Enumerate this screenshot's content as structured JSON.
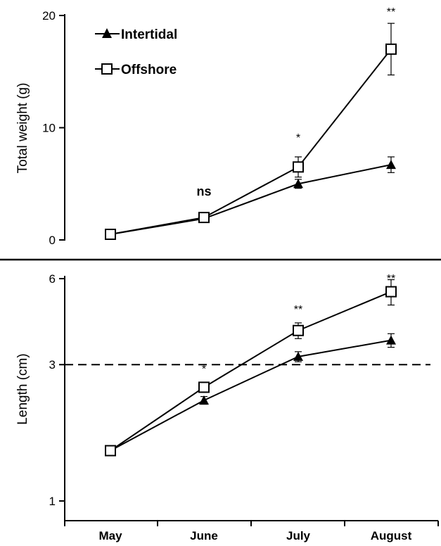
{
  "chart_data": [
    {
      "type": "line",
      "ylabel": "Total weight (g)",
      "ylim": [
        0,
        20
      ],
      "yticks": [
        "0",
        "10",
        "20"
      ],
      "categories": [
        "May",
        "June",
        "July",
        "August"
      ],
      "series": [
        {
          "name": "Intertidal",
          "marker": "filled-triangle",
          "values": [
            0.5,
            1.9,
            5.0,
            6.7
          ],
          "errors": [
            0.1,
            0.2,
            0.4,
            0.7
          ]
        },
        {
          "name": "Offshore",
          "marker": "open-square",
          "values": [
            0.5,
            2.0,
            6.5,
            17.0
          ],
          "errors": [
            0.1,
            0.2,
            0.9,
            2.3
          ]
        }
      ],
      "annotations": [
        {
          "category": "June",
          "text": "ns"
        },
        {
          "category": "July",
          "text": "*"
        },
        {
          "category": "August",
          "text": "**"
        }
      ]
    },
    {
      "type": "line",
      "ylabel": "Length (cm)",
      "yscale": "log",
      "ylim": [
        1,
        6
      ],
      "yticks": [
        "1",
        "3",
        "6"
      ],
      "reference_line": {
        "y": 3,
        "style": "dashed"
      },
      "categories": [
        "May",
        "June",
        "July",
        "August"
      ],
      "series": [
        {
          "name": "Intertidal",
          "marker": "filled-triangle",
          "values": [
            1.5,
            2.25,
            3.2,
            3.65
          ],
          "errors": [
            0.04,
            0.07,
            0.13,
            0.2
          ]
        },
        {
          "name": "Offshore",
          "marker": "open-square",
          "values": [
            1.5,
            2.5,
            3.95,
            5.4
          ],
          "errors": [
            0.04,
            0.1,
            0.25,
            0.55
          ]
        }
      ],
      "annotations": [
        {
          "category": "June",
          "text": "*"
        },
        {
          "category": "July",
          "text": "**"
        },
        {
          "category": "August",
          "text": "**"
        }
      ]
    }
  ]
}
